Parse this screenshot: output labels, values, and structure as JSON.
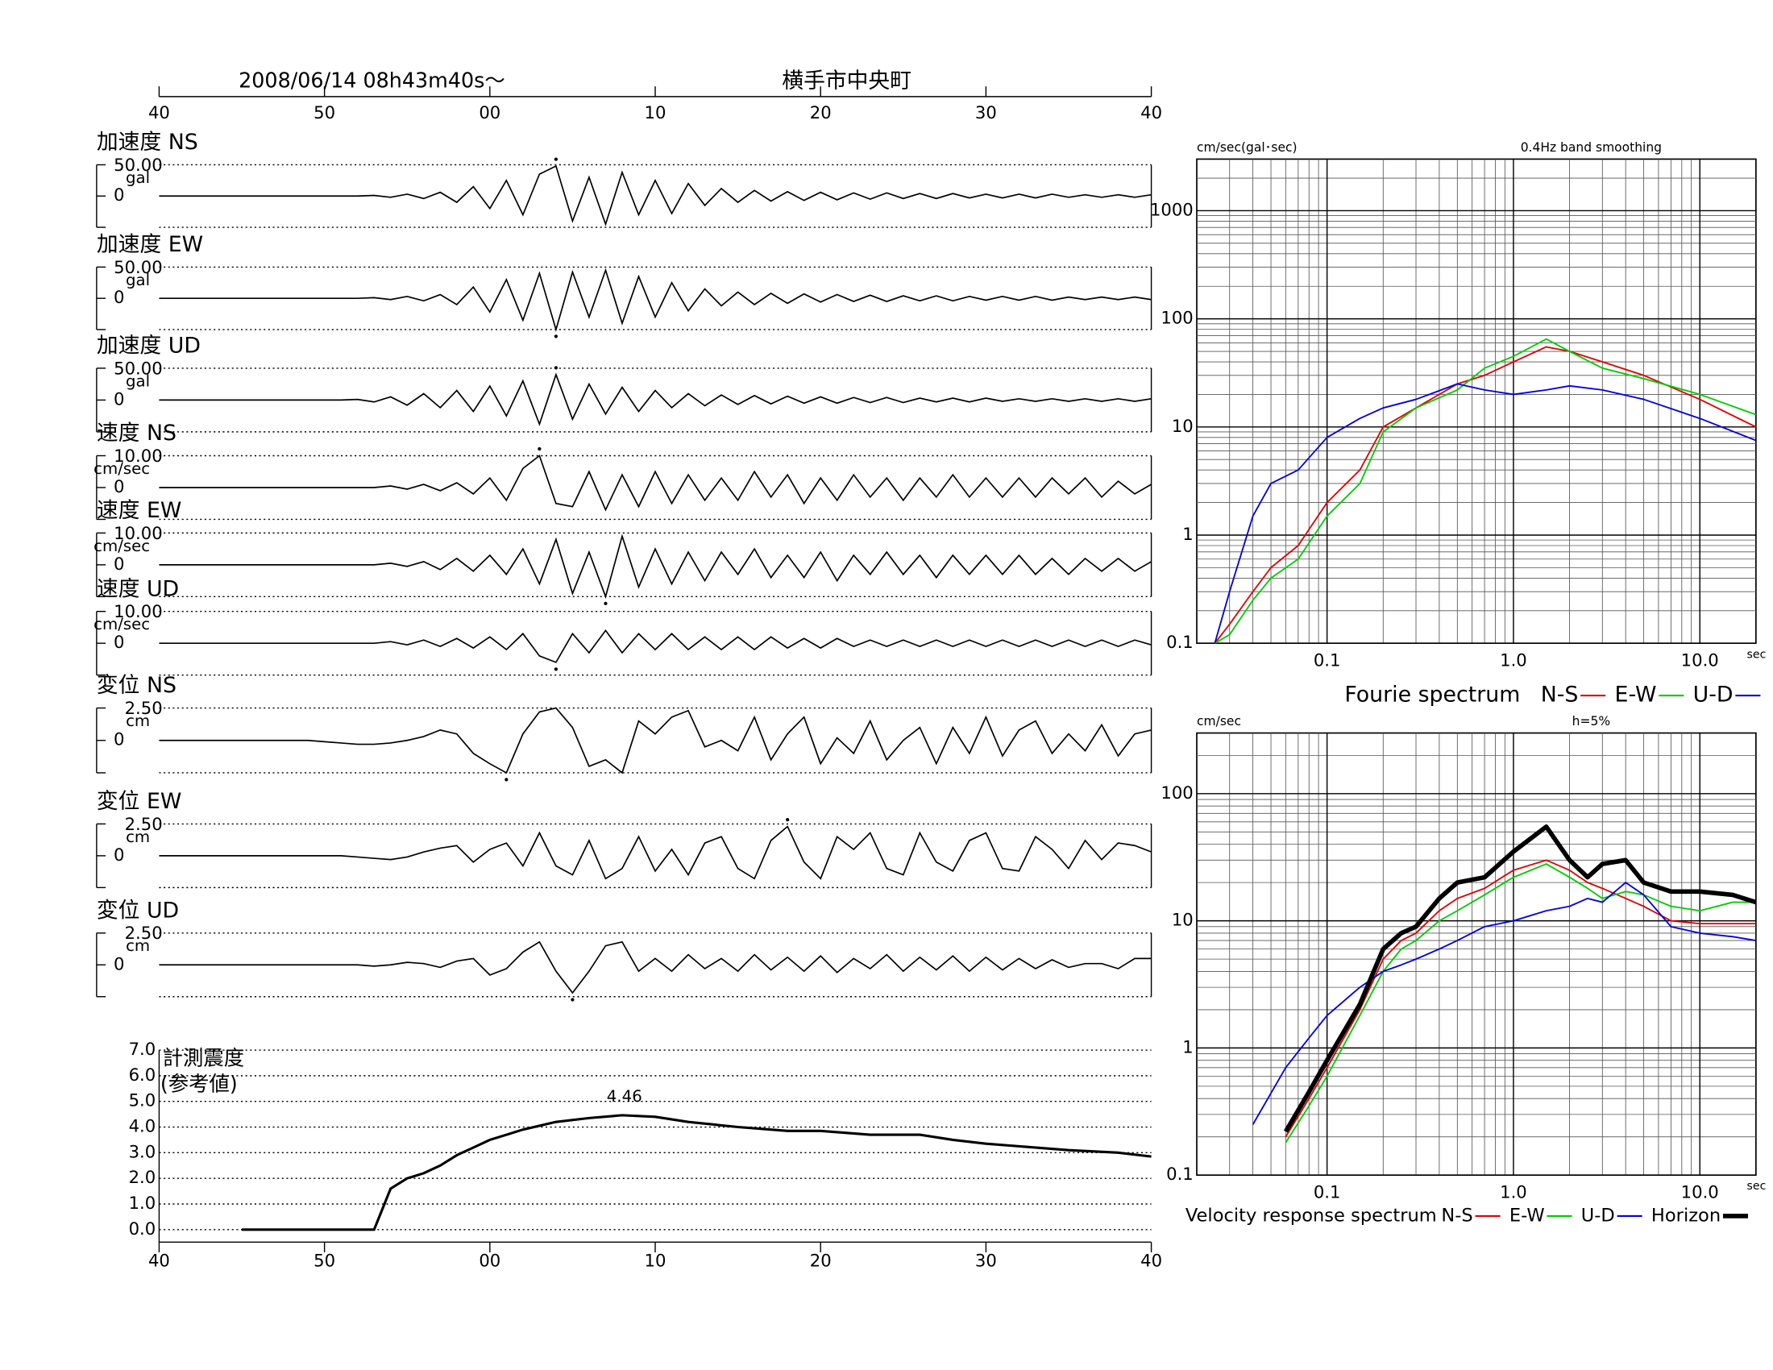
{
  "chart_data": [
    {
      "type": "waveform",
      "title": "2008/06/14  08h43m40s～",
      "subtitle": "横手市中央町",
      "mark_peak": true,
      "xlim": [
        40,
        100
      ],
      "xticks": [
        40,
        50,
        {
          "value": 60,
          "label": "00"
        },
        {
          "value": 70,
          "label": "10"
        },
        {
          "value": 80,
          "label": "20"
        },
        {
          "value": 90,
          "label": "30"
        },
        {
          "value": 100,
          "label": "40"
        }
      ],
      "x": [
        40,
        41,
        42,
        43,
        44,
        45,
        46,
        47,
        48,
        49,
        50,
        51,
        52,
        53,
        54,
        55,
        56,
        57,
        58,
        59,
        60,
        61,
        62,
        63,
        64,
        65,
        66,
        67,
        68,
        69,
        70,
        71,
        72,
        73,
        74,
        75,
        76,
        77,
        78,
        79,
        80,
        81,
        82,
        83,
        84,
        85,
        86,
        87,
        88,
        89,
        90,
        91,
        92,
        93,
        94,
        95,
        96,
        97,
        98,
        99,
        100
      ],
      "series": [
        {
          "name": "加速度 NS",
          "unit": "gal",
          "ylim": [
            -50,
            50
          ],
          "yticks": [
            {
              "value": 50,
              "label": "50.00"
            },
            0
          ],
          "values": [
            0,
            0,
            0,
            0,
            0,
            0,
            0,
            0,
            0,
            0,
            0,
            0,
            0,
            1,
            -2,
            3,
            -4,
            6,
            -10,
            15,
            -20,
            25,
            -30,
            35,
            48,
            -40,
            30,
            -45,
            38,
            -30,
            25,
            -28,
            20,
            -15,
            12,
            -10,
            9,
            -8,
            7,
            -7,
            6,
            -6,
            5,
            -5,
            5,
            -4,
            4,
            -4,
            4,
            -3,
            3,
            -3,
            3,
            -3,
            3,
            -2,
            2,
            -2,
            2,
            -2,
            2
          ]
        },
        {
          "name": "加速度 EW",
          "unit": "gal",
          "ylim": [
            -50,
            50
          ],
          "yticks": [
            {
              "value": 50,
              "label": "50.00"
            },
            0
          ],
          "values": [
            0,
            0,
            0,
            0,
            0,
            0,
            0,
            0,
            0,
            0,
            0,
            0,
            0,
            1,
            -2,
            3,
            -4,
            6,
            -10,
            18,
            -22,
            30,
            -35,
            40,
            -50,
            42,
            -30,
            45,
            -40,
            35,
            -30,
            25,
            -20,
            15,
            -12,
            10,
            -10,
            8,
            -8,
            7,
            -6,
            6,
            -5,
            5,
            -5,
            4,
            -4,
            4,
            -4,
            3,
            -3,
            3,
            -3,
            3,
            -3,
            2,
            -2,
            2,
            -2,
            2,
            -2
          ]
        },
        {
          "name": "加速度 UD",
          "unit": "gal",
          "ylim": [
            -50,
            50
          ],
          "yticks": [
            {
              "value": 50,
              "label": "50.00"
            },
            0
          ],
          "values": [
            0,
            0,
            0,
            0,
            0,
            0,
            0,
            0,
            0,
            0,
            0,
            0,
            1,
            -3,
            5,
            -8,
            10,
            -12,
            15,
            -18,
            22,
            -25,
            30,
            -38,
            40,
            -30,
            25,
            -22,
            20,
            -18,
            15,
            -12,
            10,
            -9,
            8,
            -7,
            7,
            -6,
            6,
            -5,
            5,
            -5,
            4,
            -4,
            4,
            -4,
            3,
            -3,
            3,
            -3,
            3,
            -2,
            2,
            -2,
            2,
            -2,
            2,
            -2,
            2,
            -2,
            2
          ]
        },
        {
          "name": "速度 NS",
          "unit": "cm/sec",
          "ylim": [
            -10,
            10
          ],
          "yticks": [
            {
              "value": 10,
              "label": "10.00"
            },
            0
          ],
          "values": [
            0,
            0,
            0,
            0,
            0,
            0,
            0,
            0,
            0,
            0,
            0,
            0,
            0,
            0,
            0.5,
            -0.5,
            1,
            -1,
            1.5,
            -2,
            3,
            -4,
            6,
            10,
            -5,
            -6,
            5,
            -7,
            4,
            -6,
            5,
            -5,
            4,
            -4,
            3,
            -4,
            5,
            -3,
            4,
            -5,
            3,
            -4,
            4,
            -3,
            3,
            -4,
            3,
            -3,
            4,
            -3,
            3,
            -3,
            3,
            -3,
            3,
            -2,
            3,
            -3,
            2,
            -2,
            1
          ]
        },
        {
          "name": "速度 EW",
          "unit": "cm/sec",
          "ylim": [
            -10,
            10
          ],
          "yticks": [
            {
              "value": 10,
              "label": "10.00"
            },
            0
          ],
          "values": [
            0,
            0,
            0,
            0,
            0,
            0,
            0,
            0,
            0,
            0,
            0,
            0,
            0,
            0,
            0.5,
            -0.5,
            1,
            -1.5,
            2,
            -2,
            3,
            -3,
            5,
            -6,
            8,
            -9,
            4,
            -10,
            9,
            -7,
            5,
            -6,
            4,
            -5,
            4,
            -3,
            5,
            -4,
            3,
            -4,
            4,
            -5,
            3,
            -3,
            4,
            -3,
            3,
            -4,
            3,
            -3,
            3,
            -3,
            3,
            -3,
            2,
            -3,
            2,
            -2,
            2,
            -2,
            1
          ]
        },
        {
          "name": "速度 UD",
          "unit": "cm/sec",
          "ylim": [
            -10,
            10
          ],
          "yticks": [
            {
              "value": 10,
              "label": "10.00"
            },
            0
          ],
          "values": [
            0,
            0,
            0,
            0,
            0,
            0,
            0,
            0,
            0,
            0,
            0,
            0,
            0,
            0,
            0.5,
            -0.5,
            1,
            -1,
            1.5,
            -1.5,
            2,
            -2,
            3,
            -4,
            -6,
            3,
            -3,
            4,
            -3,
            3,
            -2,
            3,
            -2,
            2,
            -2,
            2,
            -2,
            2,
            -1.5,
            1.5,
            -1.5,
            1.5,
            -1,
            1,
            -1,
            1,
            -1,
            1,
            -1,
            1,
            -1,
            1,
            -1,
            1,
            -1,
            1,
            -1,
            1,
            -1,
            1,
            -0.5
          ]
        },
        {
          "name": "変位 NS",
          "unit": "cm",
          "ylim": [
            -2.5,
            2.5
          ],
          "yticks": [
            {
              "value": 2.5,
              "label": "2.50"
            },
            0
          ],
          "values": [
            0,
            0,
            0,
            0,
            0,
            0,
            0,
            0,
            0,
            0,
            -0.1,
            -0.2,
            -0.3,
            -0.3,
            -0.2,
            0,
            0.3,
            0.8,
            0.5,
            -1,
            -1.8,
            -2.5,
            0.5,
            2.2,
            2.5,
            1,
            -2,
            -1.5,
            -2.5,
            1.5,
            0.5,
            1.8,
            2.3,
            -0.5,
            0,
            -0.8,
            1.8,
            -1.5,
            0.5,
            1.8,
            -1.8,
            0.2,
            -1,
            1.5,
            -1.5,
            0,
            1,
            -1.8,
            1,
            -1,
            1.8,
            -1.2,
            0.8,
            1.5,
            -1,
            0.5,
            -0.8,
            1.2,
            -1.2,
            0.5,
            0.8
          ]
        },
        {
          "name": "変位 EW",
          "unit": "cm",
          "ylim": [
            -2.5,
            2.5
          ],
          "yticks": [
            {
              "value": 2.5,
              "label": "2.50"
            },
            0
          ],
          "values": [
            0,
            0,
            0,
            0,
            0,
            0,
            0,
            0,
            0,
            0,
            0,
            0,
            -0.1,
            -0.2,
            -0.3,
            -0.1,
            0.3,
            0.6,
            0.8,
            -0.5,
            0.5,
            1,
            -0.8,
            1.8,
            -0.8,
            -1.5,
            1.2,
            -1.8,
            -1,
            1.5,
            -1.2,
            0.5,
            -1.5,
            1,
            1.5,
            -1,
            -1.8,
            1.2,
            2.3,
            -0.5,
            -1.8,
            1.5,
            0.5,
            1.8,
            -1,
            -1.5,
            1.8,
            -0.5,
            -1.2,
            1.2,
            1.8,
            -1,
            -1.2,
            1.5,
            0.5,
            -1,
            1.2,
            -0.3,
            1,
            0.8,
            0.3
          ]
        },
        {
          "name": "変位 UD",
          "unit": "cm",
          "ylim": [
            -2.5,
            2.5
          ],
          "yticks": [
            {
              "value": 2.5,
              "label": "2.50"
            },
            0
          ],
          "values": [
            0,
            0,
            0,
            0,
            0,
            0,
            0,
            0,
            0,
            0,
            0,
            0,
            0,
            -0.1,
            0,
            0.2,
            0.1,
            -0.2,
            0.3,
            0.5,
            -0.8,
            -0.3,
            1,
            1.8,
            -0.5,
            -2.2,
            -0.5,
            1.5,
            1.8,
            -0.5,
            0.5,
            -0.5,
            0.8,
            -0.3,
            0.5,
            -0.5,
            0.8,
            -0.4,
            0.6,
            -0.5,
            0.7,
            -0.6,
            0.5,
            -0.3,
            0.8,
            -0.5,
            0.6,
            -0.4,
            0.7,
            -0.5,
            0.6,
            -0.4,
            0.5,
            -0.3,
            0.4,
            -0.2,
            0.1,
            0.1,
            -0.3,
            0.5,
            0.5
          ]
        }
      ]
    },
    {
      "type": "line",
      "title": "計測震度",
      "subtitle": "(参考値)",
      "label_max": true,
      "grid": true,
      "xlim": [
        40,
        100
      ],
      "xticks": [
        40,
        50,
        {
          "value": 60,
          "label": "00"
        },
        {
          "value": 70,
          "label": "10"
        },
        {
          "value": 80,
          "label": "20"
        },
        {
          "value": 90,
          "label": "30"
        },
        {
          "value": 100,
          "label": "40"
        }
      ],
      "ylim": [
        0,
        7
      ],
      "yticks": [
        {
          "value": 0,
          "label": "0.0"
        },
        {
          "value": 1,
          "label": "1.0"
        },
        {
          "value": 2,
          "label": "2.0"
        },
        {
          "value": 3,
          "label": "3.0"
        },
        {
          "value": 4,
          "label": "4.0"
        },
        {
          "value": 5,
          "label": "5.0"
        },
        {
          "value": 6,
          "label": "6.0"
        },
        {
          "value": 7,
          "label": "7.0"
        }
      ],
      "x": [
        45,
        53,
        53.5,
        54,
        55,
        56,
        57,
        58,
        59,
        60,
        62,
        64,
        66,
        68,
        70,
        72,
        75,
        78,
        80,
        83,
        86,
        88,
        90,
        92,
        95,
        98,
        100
      ],
      "values": [
        0,
        0,
        0.8,
        1.6,
        2.0,
        2.2,
        2.5,
        2.9,
        3.2,
        3.5,
        3.9,
        4.2,
        4.35,
        4.46,
        4.4,
        4.2,
        4.0,
        3.85,
        3.85,
        3.7,
        3.7,
        3.5,
        3.35,
        3.25,
        3.1,
        3.0,
        2.85
      ]
    },
    {
      "type": "loglog",
      "title": "Fourie spectrum",
      "ylabel": "cm/sec(gal･sec)",
      "note": "0.4Hz band smoothing",
      "xlabel": "sec",
      "xlog": true,
      "ylog": true,
      "grid": true,
      "minor_grid": true,
      "xlim": [
        0.02,
        20
      ],
      "xticks": [
        0.1,
        {
          "value": 1,
          "label": "1.0"
        },
        {
          "value": 10,
          "label": "10.0"
        }
      ],
      "ylim": [
        0.1,
        3000
      ],
      "yticks": [
        0.1,
        1,
        10,
        100,
        1000
      ],
      "x": [
        0.025,
        0.03,
        0.04,
        0.05,
        0.07,
        0.1,
        0.15,
        0.2,
        0.3,
        0.5,
        0.7,
        1,
        1.5,
        2,
        3,
        5,
        10,
        20
      ],
      "series": [
        {
          "name": "N-S",
          "color": "#e00000",
          "values": [
            0.1,
            0.15,
            0.3,
            0.5,
            0.8,
            2,
            4,
            10,
            15,
            25,
            30,
            40,
            55,
            50,
            40,
            30,
            18,
            10
          ]
        },
        {
          "name": "E-W",
          "color": "#00cc00",
          "values": [
            0.1,
            0.12,
            0.25,
            0.4,
            0.6,
            1.5,
            3,
            9,
            15,
            22,
            35,
            45,
            65,
            50,
            35,
            28,
            20,
            13
          ]
        },
        {
          "name": "U-D",
          "color": "#0000e0",
          "values": [
            0.1,
            0.3,
            1.5,
            3,
            4,
            8,
            12,
            15,
            18,
            25,
            22,
            20,
            22,
            24,
            22,
            18,
            12,
            7.5
          ]
        }
      ]
    },
    {
      "type": "loglog",
      "title": "Velocity response spectrum",
      "ylabel": "cm/sec",
      "note": "h=5%",
      "xlabel": "sec",
      "xlog": true,
      "ylog": true,
      "grid": true,
      "minor_grid": true,
      "xlim": [
        0.02,
        20
      ],
      "xticks": [
        0.1,
        {
          "value": 1,
          "label": "1.0"
        },
        {
          "value": 10,
          "label": "10.0"
        }
      ],
      "ylim": [
        0.1,
        300
      ],
      "yticks": [
        0.1,
        1,
        10,
        100
      ],
      "x": [
        0.04,
        0.06,
        0.08,
        0.1,
        0.15,
        0.2,
        0.25,
        0.3,
        0.4,
        0.5,
        0.7,
        1,
        1.5,
        2,
        2.5,
        3,
        4,
        5,
        7,
        10,
        15,
        20
      ],
      "series": [
        {
          "name": "N-S",
          "color": "#e00000",
          "values": [
            null,
            0.2,
            0.4,
            0.7,
            2,
            5,
            7,
            8,
            12,
            15,
            18,
            25,
            30,
            25,
            20,
            18,
            15,
            13,
            10,
            9.5,
            9.5,
            9.5
          ]
        },
        {
          "name": "E-W",
          "color": "#00cc00",
          "values": [
            null,
            0.18,
            0.35,
            0.6,
            1.8,
            4,
            6,
            7,
            10,
            12,
            16,
            22,
            28,
            22,
            18,
            15,
            17,
            16,
            13,
            12,
            14,
            14
          ]
        },
        {
          "name": "U-D",
          "color": "#0000e0",
          "values": [
            0.25,
            0.7,
            1.2,
            1.8,
            3,
            4,
            4.5,
            5,
            6,
            7,
            9,
            10,
            12,
            13,
            15,
            14,
            20,
            16,
            9,
            8,
            7.5,
            7
          ]
        },
        {
          "name": "Horizon",
          "color": "#000000",
          "bold": true,
          "values": [
            null,
            0.22,
            0.45,
            0.8,
            2.2,
            6,
            8,
            9,
            15,
            20,
            22,
            35,
            55,
            30,
            22,
            28,
            30,
            20,
            17,
            17,
            16,
            14
          ]
        }
      ]
    }
  ]
}
